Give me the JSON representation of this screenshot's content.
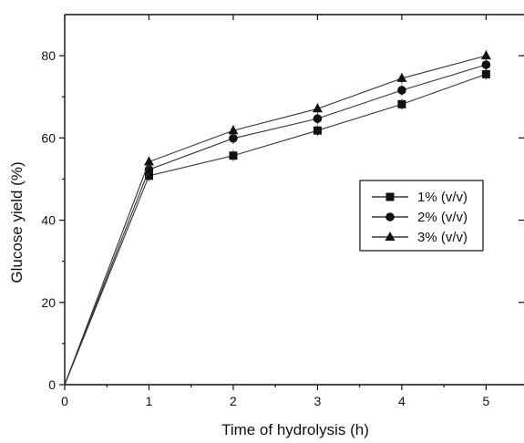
{
  "chart_data": {
    "type": "line",
    "title": "",
    "xlabel": "Time of hydrolysis (h)",
    "ylabel": "Glucose yield (%)",
    "xlim": [
      0,
      5.45
    ],
    "ylim": [
      0,
      90
    ],
    "xticks": [
      0,
      1,
      2,
      3,
      4,
      5
    ],
    "yticks": [
      0,
      20,
      40,
      60,
      80
    ],
    "x": [
      0,
      1,
      2,
      3,
      4,
      5
    ],
    "series": [
      {
        "name": "1% (v/v)",
        "marker": "square",
        "values": [
          0,
          50.8,
          55.7,
          61.8,
          68.2,
          75.5
        ]
      },
      {
        "name": "2% (v/v)",
        "marker": "circle",
        "values": [
          0,
          52.3,
          59.9,
          64.7,
          71.6,
          77.8
        ]
      },
      {
        "name": "3% (v/v)",
        "marker": "triangle",
        "values": [
          0,
          54.2,
          61.8,
          67.1,
          74.5,
          80.0
        ]
      }
    ],
    "grid": false,
    "legend_position": "right"
  }
}
